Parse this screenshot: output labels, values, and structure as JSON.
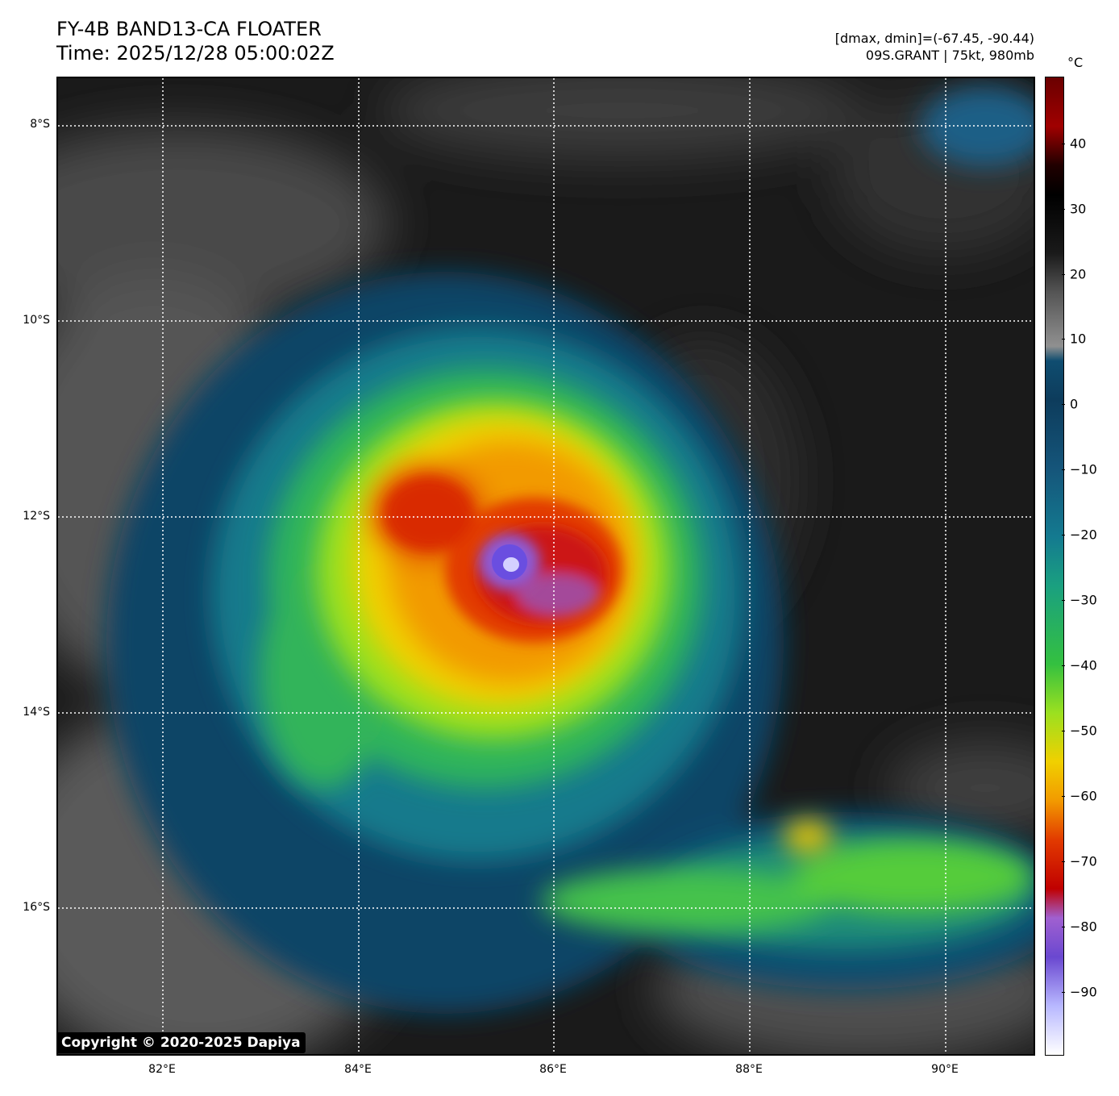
{
  "header": {
    "title": "FY-4B BAND13-CA FLOATER",
    "time": "Time: 2025/12/28 05:00:02Z",
    "range": "[dmax, dmin]=(-67.45, -90.44)",
    "storm": "09S.GRANT | 75kt, 980mb"
  },
  "map": {
    "lat_labels": [
      "8°S",
      "10°S",
      "12°S",
      "14°S",
      "16°S"
    ],
    "lon_labels": [
      "82°E",
      "84°E",
      "86°E",
      "88°E",
      "90°E"
    ],
    "copyright": "Copyright © 2020-2025 Dapiya"
  },
  "colorbar": {
    "unit": "°C",
    "ticks": [
      "40",
      "30",
      "20",
      "10",
      "0",
      "−10",
      "−20",
      "−30",
      "−40",
      "−50",
      "−60",
      "−70",
      "−80",
      "−90"
    ]
  }
}
